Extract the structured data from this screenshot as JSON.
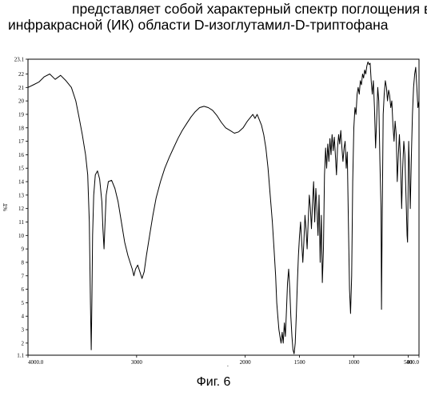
{
  "caption": {
    "line1": "представляет собой характерный спектр поглощения в",
    "line2": "инфракрасной (ИК) области D-изоглутамил-D-триптофана"
  },
  "figure_label": "Фиг. 6",
  "chart_data": {
    "type": "line",
    "xlabel": "cm-l",
    "ylabel": "%T",
    "xlim": [
      4000.0,
      400.0
    ],
    "ylim": [
      1.1,
      23.1
    ],
    "x_reversed": true,
    "grid": false,
    "legend": "none",
    "x_ticks": [
      {
        "value": 4000.0,
        "label": "4000.0"
      },
      {
        "value": 3000,
        "label": "3000"
      },
      {
        "value": 2000,
        "label": "2000"
      },
      {
        "value": 1500,
        "label": "1500"
      },
      {
        "value": 1000,
        "label": "1000"
      },
      {
        "value": 500,
        "label": "500"
      },
      {
        "value": 400.0,
        "label": "400.0"
      }
    ],
    "y_ticks": [
      {
        "value": 23.1,
        "label": "23.1"
      },
      {
        "value": 22,
        "label": "22"
      },
      {
        "value": 21,
        "label": "21"
      },
      {
        "value": 20,
        "label": "20"
      },
      {
        "value": 19,
        "label": "19"
      },
      {
        "value": 18,
        "label": "18"
      },
      {
        "value": 17,
        "label": "17"
      },
      {
        "value": 16,
        "label": "16"
      },
      {
        "value": 15,
        "label": "15"
      },
      {
        "value": 14,
        "label": "14"
      },
      {
        "value": 13,
        "label": "13"
      },
      {
        "value": 12,
        "label": "12"
      },
      {
        "value": 11,
        "label": "11"
      },
      {
        "value": 10,
        "label": "10"
      },
      {
        "value": 9,
        "label": "9"
      },
      {
        "value": 8,
        "label": "8"
      },
      {
        "value": 7,
        "label": "7"
      },
      {
        "value": 6,
        "label": "6"
      },
      {
        "value": 5,
        "label": "5"
      },
      {
        "value": 4,
        "label": "4"
      },
      {
        "value": 3,
        "label": "3"
      },
      {
        "value": 2,
        "label": "2"
      },
      {
        "value": 1.1,
        "label": "1.1"
      }
    ],
    "series": [
      {
        "color": "#000000",
        "points": [
          [
            4000,
            21.0
          ],
          [
            3950,
            21.2
          ],
          [
            3900,
            21.4
          ],
          [
            3850,
            21.8
          ],
          [
            3800,
            22.0
          ],
          [
            3750,
            21.6
          ],
          [
            3700,
            21.9
          ],
          [
            3650,
            21.5
          ],
          [
            3600,
            21.0
          ],
          [
            3560,
            20.0
          ],
          [
            3530,
            18.8
          ],
          [
            3500,
            17.5
          ],
          [
            3470,
            16.0
          ],
          [
            3450,
            14.5
          ],
          [
            3435,
            11.0
          ],
          [
            3425,
            5.0
          ],
          [
            3418,
            1.5
          ],
          [
            3412,
            5.0
          ],
          [
            3405,
            10.0
          ],
          [
            3395,
            13.0
          ],
          [
            3380,
            14.5
          ],
          [
            3360,
            14.8
          ],
          [
            3340,
            14.2
          ],
          [
            3320,
            12.5
          ],
          [
            3310,
            10.5
          ],
          [
            3300,
            9.0
          ],
          [
            3290,
            11.0
          ],
          [
            3280,
            13.0
          ],
          [
            3260,
            14.0
          ],
          [
            3230,
            14.1
          ],
          [
            3200,
            13.5
          ],
          [
            3170,
            12.5
          ],
          [
            3140,
            11.0
          ],
          [
            3110,
            9.5
          ],
          [
            3080,
            8.5
          ],
          [
            3060,
            8.0
          ],
          [
            3040,
            7.5
          ],
          [
            3025,
            7.0
          ],
          [
            3010,
            7.5
          ],
          [
            2990,
            7.8
          ],
          [
            2970,
            7.3
          ],
          [
            2950,
            6.8
          ],
          [
            2930,
            7.3
          ],
          [
            2910,
            8.5
          ],
          [
            2880,
            10.0
          ],
          [
            2850,
            11.5
          ],
          [
            2820,
            12.8
          ],
          [
            2780,
            14.0
          ],
          [
            2740,
            15.0
          ],
          [
            2700,
            15.8
          ],
          [
            2660,
            16.5
          ],
          [
            2620,
            17.2
          ],
          [
            2580,
            17.8
          ],
          [
            2540,
            18.3
          ],
          [
            2500,
            18.8
          ],
          [
            2460,
            19.2
          ],
          [
            2420,
            19.5
          ],
          [
            2380,
            19.6
          ],
          [
            2340,
            19.5
          ],
          [
            2300,
            19.3
          ],
          [
            2260,
            18.9
          ],
          [
            2220,
            18.4
          ],
          [
            2180,
            18.0
          ],
          [
            2140,
            17.8
          ],
          [
            2100,
            17.6
          ],
          [
            2060,
            17.7
          ],
          [
            2020,
            18.0
          ],
          [
            1980,
            18.5
          ],
          [
            1950,
            18.8
          ],
          [
            1930,
            19.0
          ],
          [
            1910,
            18.7
          ],
          [
            1890,
            19.0
          ],
          [
            1870,
            18.6
          ],
          [
            1850,
            18.2
          ],
          [
            1830,
            17.5
          ],
          [
            1810,
            16.5
          ],
          [
            1790,
            15.0
          ],
          [
            1770,
            13.0
          ],
          [
            1750,
            11.0
          ],
          [
            1735,
            9.0
          ],
          [
            1720,
            7.0
          ],
          [
            1710,
            5.0
          ],
          [
            1700,
            4.0
          ],
          [
            1690,
            3.0
          ],
          [
            1680,
            2.5
          ],
          [
            1670,
            2.0
          ],
          [
            1660,
            2.8
          ],
          [
            1650,
            2.0
          ],
          [
            1640,
            3.5
          ],
          [
            1630,
            2.5
          ],
          [
            1620,
            4.5
          ],
          [
            1610,
            6.5
          ],
          [
            1600,
            7.5
          ],
          [
            1590,
            6.0
          ],
          [
            1580,
            4.0
          ],
          [
            1570,
            2.5
          ],
          [
            1560,
            1.5
          ],
          [
            1550,
            1.2
          ],
          [
            1540,
            2.0
          ],
          [
            1530,
            4.0
          ],
          [
            1520,
            6.5
          ],
          [
            1510,
            8.5
          ],
          [
            1500,
            10.0
          ],
          [
            1490,
            11.0
          ],
          [
            1480,
            9.5
          ],
          [
            1470,
            8.0
          ],
          [
            1460,
            9.5
          ],
          [
            1450,
            11.5
          ],
          [
            1440,
            10.5
          ],
          [
            1430,
            9.0
          ],
          [
            1420,
            11.0
          ],
          [
            1410,
            13.0
          ],
          [
            1400,
            12.0
          ],
          [
            1390,
            10.5
          ],
          [
            1380,
            12.5
          ],
          [
            1370,
            14.0
          ],
          [
            1360,
            11.0
          ],
          [
            1350,
            13.5
          ],
          [
            1340,
            12.0
          ],
          [
            1330,
            10.0
          ],
          [
            1320,
            13.0
          ],
          [
            1310,
            8.0
          ],
          [
            1300,
            11.5
          ],
          [
            1290,
            6.5
          ],
          [
            1280,
            9.0
          ],
          [
            1270,
            14.5
          ],
          [
            1260,
            16.5
          ],
          [
            1250,
            15.0
          ],
          [
            1240,
            16.8
          ],
          [
            1230,
            15.5
          ],
          [
            1220,
            17.2
          ],
          [
            1210,
            16.0
          ],
          [
            1200,
            17.5
          ],
          [
            1190,
            16.3
          ],
          [
            1180,
            17.3
          ],
          [
            1170,
            16.0
          ],
          [
            1160,
            14.5
          ],
          [
            1150,
            16.5
          ],
          [
            1140,
            17.5
          ],
          [
            1130,
            16.8
          ],
          [
            1120,
            17.8
          ],
          [
            1110,
            16.5
          ],
          [
            1100,
            15.5
          ],
          [
            1090,
            16.5
          ],
          [
            1080,
            17.0
          ],
          [
            1070,
            15.0
          ],
          [
            1060,
            16.2
          ],
          [
            1050,
            11.0
          ],
          [
            1040,
            6.0
          ],
          [
            1030,
            4.2
          ],
          [
            1020,
            7.0
          ],
          [
            1010,
            14.0
          ],
          [
            1000,
            18.0
          ],
          [
            990,
            19.5
          ],
          [
            980,
            19.0
          ],
          [
            970,
            20.5
          ],
          [
            960,
            21.0
          ],
          [
            950,
            20.5
          ],
          [
            940,
            21.5
          ],
          [
            930,
            21.2
          ],
          [
            920,
            22.0
          ],
          [
            910,
            21.7
          ],
          [
            900,
            22.3
          ],
          [
            890,
            22.0
          ],
          [
            880,
            22.6
          ],
          [
            870,
            22.9
          ],
          [
            860,
            22.7
          ],
          [
            850,
            22.8
          ],
          [
            840,
            21.5
          ],
          [
            830,
            20.5
          ],
          [
            820,
            21.5
          ],
          [
            810,
            19.5
          ],
          [
            800,
            16.5
          ],
          [
            790,
            18.5
          ],
          [
            780,
            21.0
          ],
          [
            770,
            20.0
          ],
          [
            760,
            15.5
          ],
          [
            750,
            12.0
          ],
          [
            745,
            4.5
          ],
          [
            740,
            10.0
          ],
          [
            730,
            19.0
          ],
          [
            720,
            20.5
          ],
          [
            710,
            21.5
          ],
          [
            700,
            21.0
          ],
          [
            690,
            20.0
          ],
          [
            680,
            20.8
          ],
          [
            670,
            20.4
          ],
          [
            660,
            19.5
          ],
          [
            650,
            20.0
          ],
          [
            640,
            18.2
          ],
          [
            630,
            17.0
          ],
          [
            620,
            18.5
          ],
          [
            610,
            17.5
          ],
          [
            600,
            14.0
          ],
          [
            590,
            16.0
          ],
          [
            580,
            17.5
          ],
          [
            570,
            15.5
          ],
          [
            560,
            12.0
          ],
          [
            550,
            15.0
          ],
          [
            540,
            17.0
          ],
          [
            530,
            16.0
          ],
          [
            520,
            13.0
          ],
          [
            510,
            10.0
          ],
          [
            505,
            9.5
          ],
          [
            500,
            13.5
          ],
          [
            495,
            17.0
          ],
          [
            490,
            15.5
          ],
          [
            480,
            12.0
          ],
          [
            470,
            16.0
          ],
          [
            460,
            19.0
          ],
          [
            450,
            21.0
          ],
          [
            440,
            22.0
          ],
          [
            430,
            22.5
          ],
          [
            420,
            21.0
          ],
          [
            410,
            19.5
          ],
          [
            400,
            20.0
          ]
        ]
      }
    ]
  }
}
